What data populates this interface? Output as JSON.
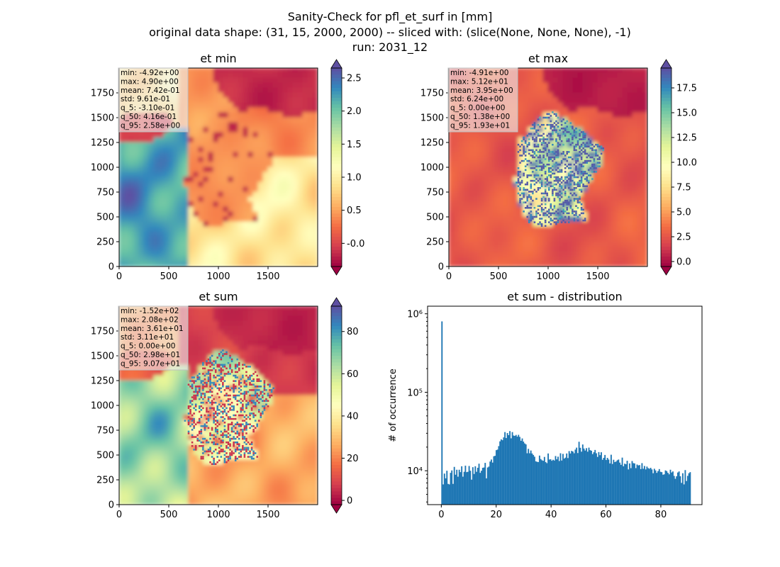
{
  "suptitle": {
    "line1": "Sanity-Check for pfl_et_surf in [mm]",
    "line2": "original data shape: (31, 15, 2000, 2000) -- sliced with: (slice(None, None, None), -1)",
    "line3": "run: 2031_12"
  },
  "colors": {
    "spectral": [
      "#9e0142",
      "#d53e4f",
      "#f46d43",
      "#fdae61",
      "#fee08b",
      "#ffffbf",
      "#e6f598",
      "#abdda4",
      "#66c2a5",
      "#3288bd",
      "#5e4fa2"
    ],
    "hist_bar": "#1f77b4",
    "stat_box": "rgba(240,240,240,0.6)"
  },
  "chart_data": [
    {
      "type": "heatmap",
      "title": "et min",
      "xlim": [
        0,
        2000
      ],
      "ylim": [
        0,
        2000
      ],
      "xticks": [
        "0",
        "500",
        "1000",
        "1500"
      ],
      "yticks": [
        "0",
        "250",
        "500",
        "750",
        "1000",
        "1250",
        "1500",
        "1750"
      ],
      "colorbar": {
        "range": [
          -0.35,
          2.65
        ],
        "ticks": [
          "-0.0",
          "0.5",
          "1.0",
          "1.5",
          "2.0",
          "2.5"
        ],
        "extend": "both"
      },
      "stats": [
        "min: -4.92e+00",
        "max: 4.90e+00",
        "mean: 7.42e-01",
        "std: 9.61e-01",
        "q_5: -3.10e-01",
        "q_50: 4.16e-01",
        "q_95: 2.58e+00"
      ]
    },
    {
      "type": "heatmap",
      "title": "et max",
      "xlim": [
        0,
        2000
      ],
      "ylim": [
        0,
        2000
      ],
      "xticks": [
        "0",
        "500",
        "1000",
        "1500"
      ],
      "yticks": [
        "0",
        "250",
        "500",
        "750",
        "1000",
        "1250",
        "1500",
        "1750"
      ],
      "colorbar": {
        "range": [
          -0.5,
          19.5
        ],
        "ticks": [
          "0.0",
          "2.5",
          "5.0",
          "7.5",
          "10.0",
          "12.5",
          "15.0",
          "17.5"
        ],
        "extend": "both"
      },
      "stats": [
        "min: -4.91e+00",
        "max: 5.12e+01",
        "mean: 3.95e+00",
        "std: 6.24e+00",
        "q_5: 0.00e+00",
        "q_50: 1.38e+00",
        "q_95: 1.93e+01"
      ]
    },
    {
      "type": "heatmap",
      "title": "et sum",
      "xlim": [
        0,
        2000
      ],
      "ylim": [
        0,
        2000
      ],
      "xticks": [
        "0",
        "500",
        "1000",
        "1500"
      ],
      "yticks": [
        "0",
        "250",
        "500",
        "750",
        "1000",
        "1250",
        "1500",
        "1750"
      ],
      "colorbar": {
        "range": [
          -2,
          92
        ],
        "ticks": [
          "0",
          "20",
          "40",
          "60",
          "80"
        ],
        "extend": "both"
      },
      "stats": [
        "min: -1.52e+02",
        "max: 2.08e+02",
        "mean: 3.61e+01",
        "std: 3.11e+01",
        "q_5: 0.00e+00",
        "q_50: 2.98e+01",
        "q_95: 9.07e+01"
      ]
    },
    {
      "type": "bar",
      "title": "et sum - distribution",
      "ylabel": "# of occurrence",
      "xlim": [
        -5,
        95
      ],
      "xticks": [
        "0",
        "20",
        "40",
        "60",
        "80"
      ],
      "yscale": "log",
      "ylim": [
        3700,
        1250000
      ],
      "yticks": [
        "10⁴",
        "10⁵",
        "10⁶"
      ],
      "bin_range": [
        0,
        90
      ],
      "bins": 200,
      "values": [
        800000,
        6700,
        9200,
        8000,
        10000,
        6800,
        6700,
        9400,
        10100,
        6800,
        11200,
        8900,
        10300,
        8400,
        10300,
        9600,
        11400,
        8400,
        9700,
        11600,
        9600,
        9700,
        11500,
        10000,
        7700,
        11100,
        9100,
        11400,
        9700,
        10900,
        12300,
        9400,
        10000,
        10900,
        11000,
        12600,
        8000,
        11000,
        11300,
        13100,
        13900,
        12700,
        15300,
        15500,
        18300,
        18600,
        20600,
        23700,
        25100,
        24500,
        26600,
        31100,
        26100,
        30200,
        28400,
        32000,
        25900,
        31100,
        28100,
        27800,
        28600,
        27200,
        28700,
        27000,
        24100,
        25800,
        23500,
        22300,
        21700,
        16700,
        19000,
        16700,
        18100,
        16600,
        15900,
        15100,
        13200,
        13000,
        12900,
        15600,
        14100,
        13600,
        13400,
        15000,
        12900,
        12500,
        16600,
        13900,
        14000,
        13400,
        13800,
        13500,
        15400,
        14000,
        15100,
        13300,
        16700,
        13500,
        16400,
        14300,
        14700,
        16600,
        14500,
        17800,
        16600,
        17900,
        17600,
        16700,
        18600,
        19700,
        16800,
        23400,
        19600,
        17500,
        21600,
        19200,
        18100,
        19400,
        17500,
        19700,
        18300,
        18000,
        16300,
        17200,
        18400,
        16700,
        15000,
        17300,
        15800,
        17200,
        13800,
        14600,
        15900,
        13700,
        14600,
        13900,
        12400,
        16000,
        12200,
        13800,
        12900,
        13100,
        13600,
        13900,
        12700,
        11900,
        14700,
        11400,
        12300,
        12100,
        13400,
        10400,
        12400,
        10800,
        13300,
        12500,
        12400,
        10800,
        12000,
        11700,
        11800,
        10500,
        12500,
        10600,
        11500,
        10400,
        11300,
        10800,
        10600,
        10900,
        10400,
        9300,
        10600,
        10100,
        9400,
        9900,
        10500,
        9700,
        9600,
        8900,
        9000,
        10100,
        9900,
        9400,
        9000,
        10300,
        9500,
        9800,
        8600,
        7900,
        8500,
        9500,
        9800,
        8500,
        7000,
        9300,
        6700,
        10200,
        7400,
        8600,
        9300,
        9600
      ]
    }
  ]
}
